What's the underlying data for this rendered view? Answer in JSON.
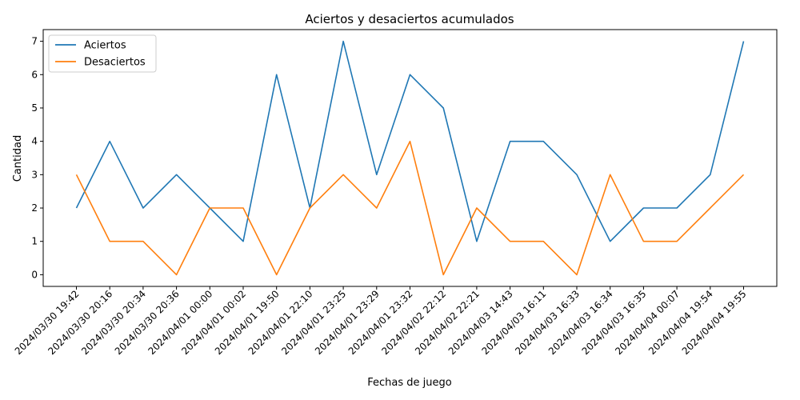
{
  "chart_data": {
    "type": "line",
    "title": "Aciertos y desaciertos acumulados",
    "xlabel": "Fechas de juego",
    "ylabel": "Cantidad",
    "ylim": [
      -0.35,
      7.35
    ],
    "yticks": [
      0,
      1,
      2,
      3,
      4,
      5,
      6,
      7
    ],
    "grid": false,
    "legend_position": "upper-left",
    "categories": [
      "2024/03/30 19:42",
      "2024/03/30 20:16",
      "2024/03/30 20:34",
      "2024/03/30 20:36",
      "2024/04/01 00:00",
      "2024/04/01 00:02",
      "2024/04/01 19:50",
      "2024/04/01 22:10",
      "2024/04/01 23:25",
      "2024/04/01 23:29",
      "2024/04/01 23:32",
      "2024/04/02 22:12",
      "2024/04/02 22:21",
      "2024/04/03 14:43",
      "2024/04/03 16:11",
      "2024/04/03 16:33",
      "2024/04/03 16:34",
      "2024/04/03 16:35",
      "2024/04/04 00:07",
      "2024/04/04 19:54",
      "2024/04/04 19:55"
    ],
    "series": [
      {
        "name": "Aciertos",
        "color": "#1f77b4",
        "values": [
          2,
          4,
          2,
          3,
          2,
          1,
          6,
          2,
          7,
          3,
          6,
          5,
          1,
          4,
          4,
          3,
          1,
          2,
          2,
          3,
          7
        ]
      },
      {
        "name": "Desaciertos",
        "color": "#ff7f0e",
        "values": [
          3,
          1,
          1,
          0,
          2,
          2,
          0,
          2,
          3,
          2,
          4,
          0,
          2,
          1,
          1,
          0,
          3,
          1,
          1,
          2,
          3
        ]
      }
    ]
  }
}
